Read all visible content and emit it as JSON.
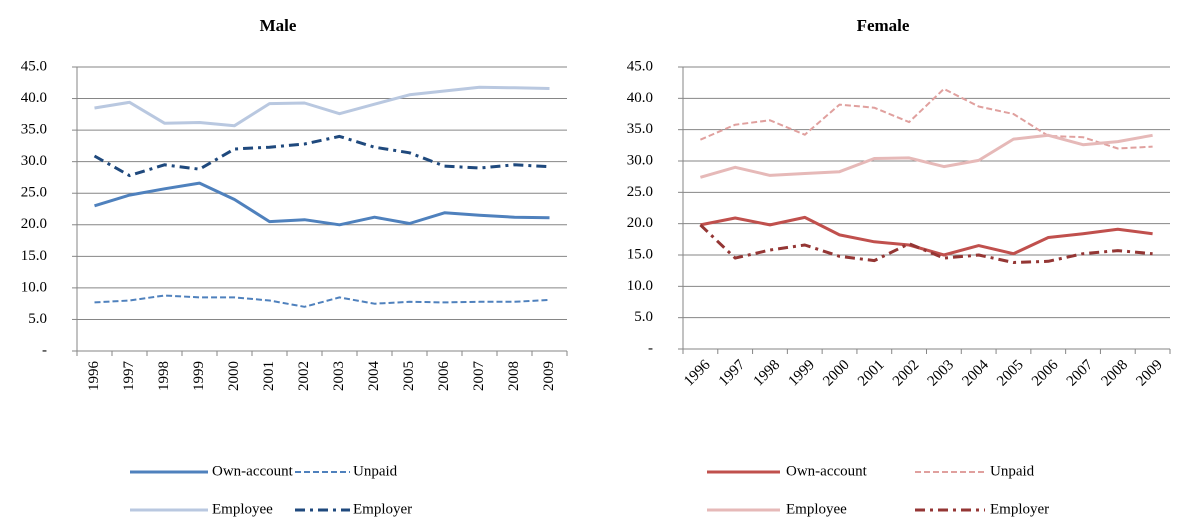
{
  "chart_data": [
    {
      "type": "line",
      "title": "Male",
      "categories": [
        "1996",
        "1997",
        "1998",
        "1999",
        "2000",
        "2001",
        "2002",
        "2003",
        "2004",
        "2005",
        "2006",
        "2007",
        "2008",
        "2009"
      ],
      "ylim": [
        0,
        45
      ],
      "yticks": [
        {
          "value": 0,
          "label": "-"
        },
        {
          "value": 5,
          "label": "5.0"
        },
        {
          "value": 10,
          "label": "10.0"
        },
        {
          "value": 15,
          "label": "15.0"
        },
        {
          "value": 20,
          "label": "20.0"
        },
        {
          "value": 25,
          "label": "25.0"
        },
        {
          "value": 30,
          "label": "30.0"
        },
        {
          "value": 35,
          "label": "35.0"
        },
        {
          "value": 40,
          "label": "40.0"
        },
        {
          "value": 45,
          "label": "45.0"
        }
      ],
      "grid": true,
      "series": [
        {
          "name": "Own-account",
          "color": "#4f81bd",
          "style": "solid",
          "values": [
            23.0,
            24.7,
            25.7,
            26.6,
            24.0,
            20.5,
            20.8,
            20.0,
            21.2,
            20.2,
            21.9,
            21.5,
            21.2,
            21.1
          ]
        },
        {
          "name": "Unpaid",
          "color": "#4f81bd",
          "style": "double-dashed",
          "values": [
            7.7,
            8.0,
            8.8,
            8.5,
            8.5,
            8.0,
            7.0,
            8.5,
            7.5,
            7.8,
            7.7,
            7.8,
            7.8,
            8.1
          ]
        },
        {
          "name": "Employee",
          "color": "#b9c8e0",
          "style": "solid",
          "values": [
            38.5,
            39.4,
            36.1,
            36.2,
            35.7,
            39.2,
            39.3,
            37.6,
            39.1,
            40.6,
            41.2,
            41.8,
            41.7,
            41.6
          ]
        },
        {
          "name": "Employer",
          "color": "#1f497d",
          "style": "dash-dot",
          "values": [
            30.9,
            27.8,
            29.5,
            28.8,
            32.0,
            32.3,
            32.8,
            34.0,
            32.3,
            31.4,
            29.3,
            29.0,
            29.5,
            29.2
          ]
        }
      ]
    },
    {
      "type": "line",
      "title": "Female",
      "categories": [
        "1996",
        "1997",
        "1998",
        "1999",
        "2000",
        "2001",
        "2002",
        "2003",
        "2004",
        "2005",
        "2006",
        "2007",
        "2008",
        "2009"
      ],
      "ylim": [
        0,
        45
      ],
      "yticks": [
        {
          "value": 0,
          "label": "-"
        },
        {
          "value": 5,
          "label": "5.0"
        },
        {
          "value": 10,
          "label": "10.0"
        },
        {
          "value": 15,
          "label": "15.0"
        },
        {
          "value": 20,
          "label": "20.0"
        },
        {
          "value": 25,
          "label": "25.0"
        },
        {
          "value": 30,
          "label": "30.0"
        },
        {
          "value": 35,
          "label": "35.0"
        },
        {
          "value": 40,
          "label": "40.0"
        },
        {
          "value": 45,
          "label": "45.0"
        }
      ],
      "grid": true,
      "series": [
        {
          "name": "Own-account",
          "color": "#c0504d",
          "style": "solid",
          "values": [
            19.8,
            20.9,
            19.8,
            21.0,
            18.2,
            17.1,
            16.6,
            15.0,
            16.5,
            15.2,
            17.8,
            18.4,
            19.1,
            18.4
          ]
        },
        {
          "name": "Unpaid",
          "color": "#e0a09e",
          "style": "double-dashed",
          "values": [
            33.4,
            35.8,
            36.5,
            34.2,
            39.0,
            38.5,
            36.2,
            41.5,
            38.7,
            37.5,
            34.0,
            33.8,
            32.0,
            32.3
          ]
        },
        {
          "name": "Employee",
          "color": "#e6b9b8",
          "style": "solid",
          "values": [
            27.4,
            29.0,
            27.7,
            28.0,
            28.3,
            30.4,
            30.5,
            29.1,
            30.1,
            33.5,
            34.1,
            32.6,
            33.1,
            34.1
          ]
        },
        {
          "name": "Employer",
          "color": "#943634",
          "style": "dash-dot",
          "values": [
            19.8,
            14.5,
            15.8,
            16.6,
            14.8,
            14.1,
            16.8,
            14.5,
            15.0,
            13.8,
            14.0,
            15.2,
            15.7,
            15.2
          ]
        }
      ]
    }
  ]
}
